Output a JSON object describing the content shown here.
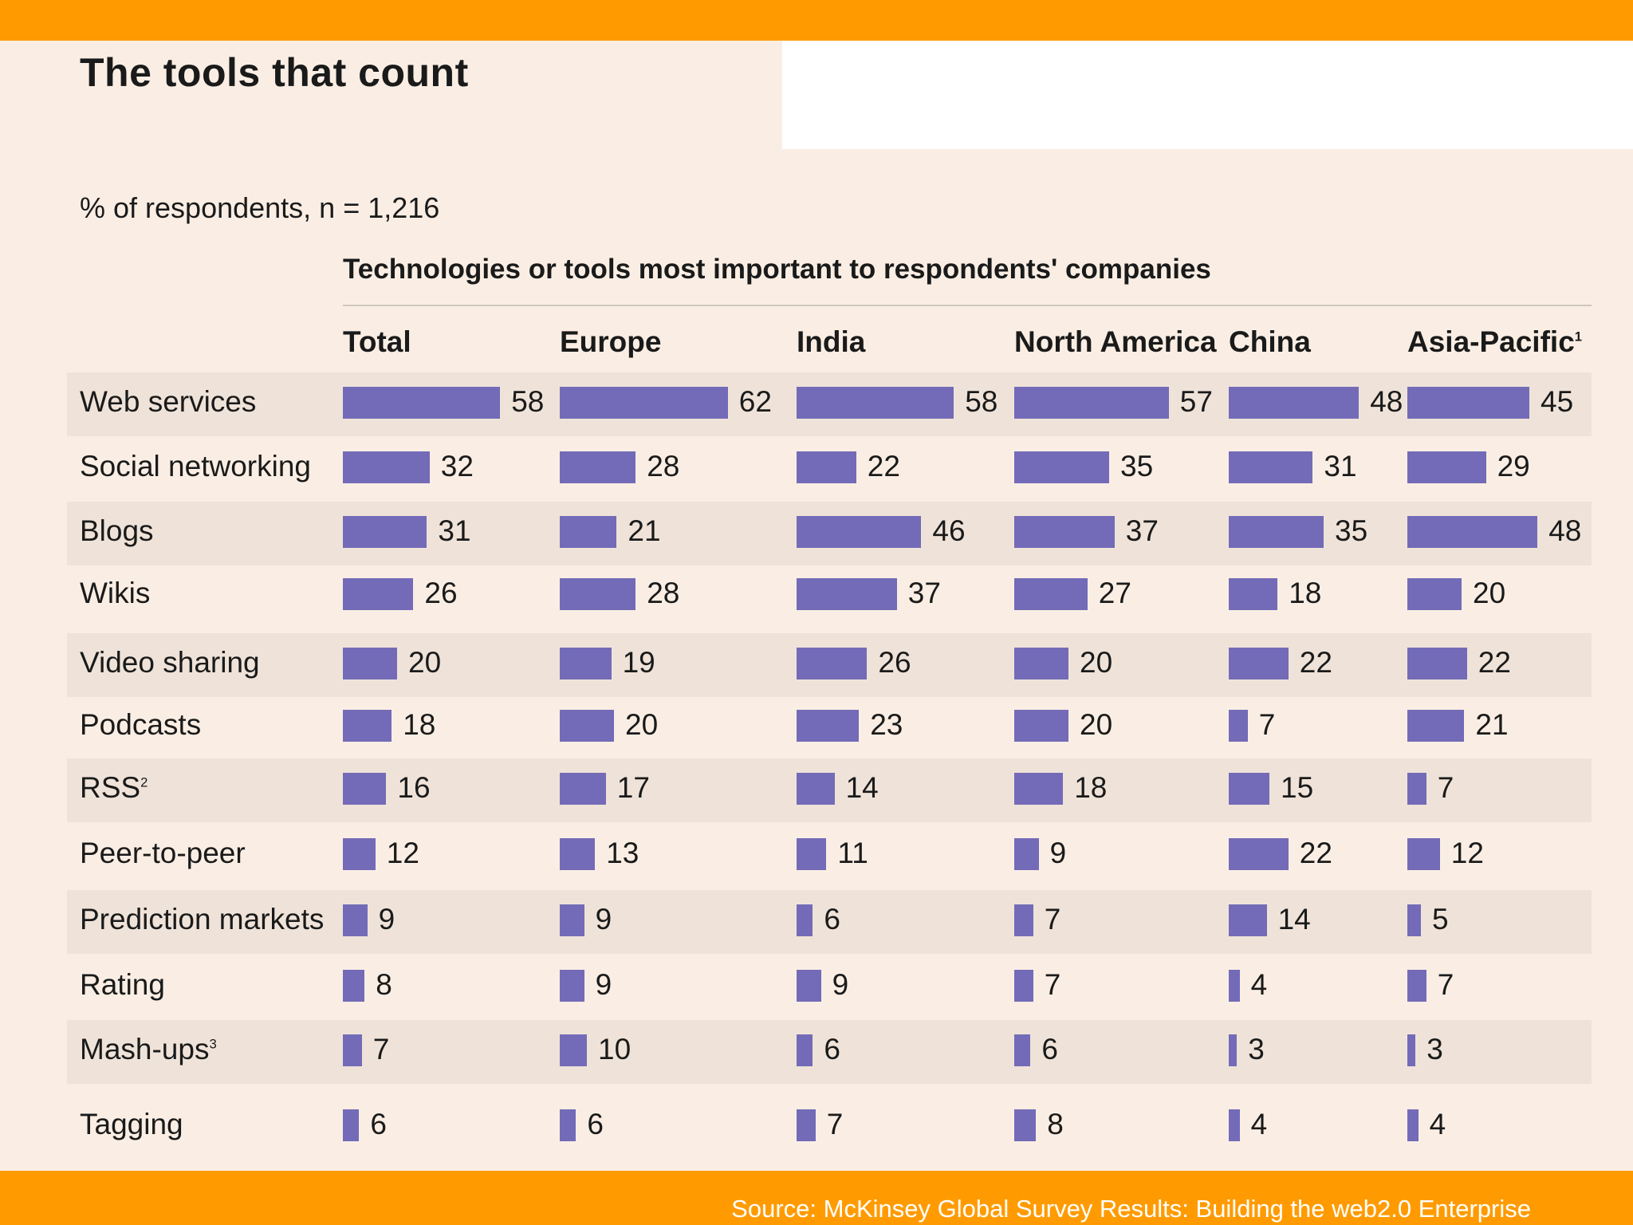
{
  "title": "The tools that count",
  "subtitle": "% of respondents, n = 1,216",
  "source": "Source: McKinsey Global Survey Results: Building the web2.0 Enterprise",
  "colors": {
    "bar": "#736bb7",
    "band": "#ff9b00",
    "background": "#faeee4",
    "row_shade": "#efe3d9"
  },
  "chart_data": {
    "type": "bar",
    "title": "Technologies or tools most important to respondents' companies",
    "orientation": "horizontal",
    "unit": "% of respondents",
    "categories": [
      "Web services",
      "Social networking",
      "Blogs",
      "Wikis",
      "Video sharing",
      "Podcasts",
      "RSS",
      "Peer-to-peer",
      "Prediction markets",
      "Rating",
      "Mash-ups",
      "Tagging"
    ],
    "category_footnotes": [
      "",
      "",
      "",
      "",
      "",
      "",
      "2",
      "",
      "",
      "",
      "3",
      ""
    ],
    "series": [
      {
        "name": "Total",
        "footnote": "",
        "values": [
          58,
          32,
          31,
          26,
          20,
          18,
          16,
          12,
          9,
          8,
          7,
          6
        ]
      },
      {
        "name": "Europe",
        "footnote": "",
        "values": [
          62,
          28,
          21,
          28,
          19,
          20,
          17,
          13,
          9,
          9,
          10,
          6
        ]
      },
      {
        "name": "India",
        "footnote": "",
        "values": [
          58,
          22,
          46,
          37,
          26,
          23,
          14,
          11,
          6,
          9,
          6,
          7
        ]
      },
      {
        "name": "North America",
        "footnote": "",
        "values": [
          57,
          35,
          37,
          27,
          20,
          20,
          18,
          9,
          7,
          7,
          6,
          8
        ]
      },
      {
        "name": "China",
        "footnote": "",
        "values": [
          48,
          31,
          35,
          18,
          22,
          7,
          15,
          22,
          14,
          4,
          3,
          4
        ]
      },
      {
        "name": "Asia-Pacific",
        "footnote": "1",
        "values": [
          45,
          29,
          48,
          20,
          22,
          21,
          7,
          12,
          5,
          7,
          3,
          4
        ]
      }
    ],
    "legend": "none",
    "grid": false
  }
}
